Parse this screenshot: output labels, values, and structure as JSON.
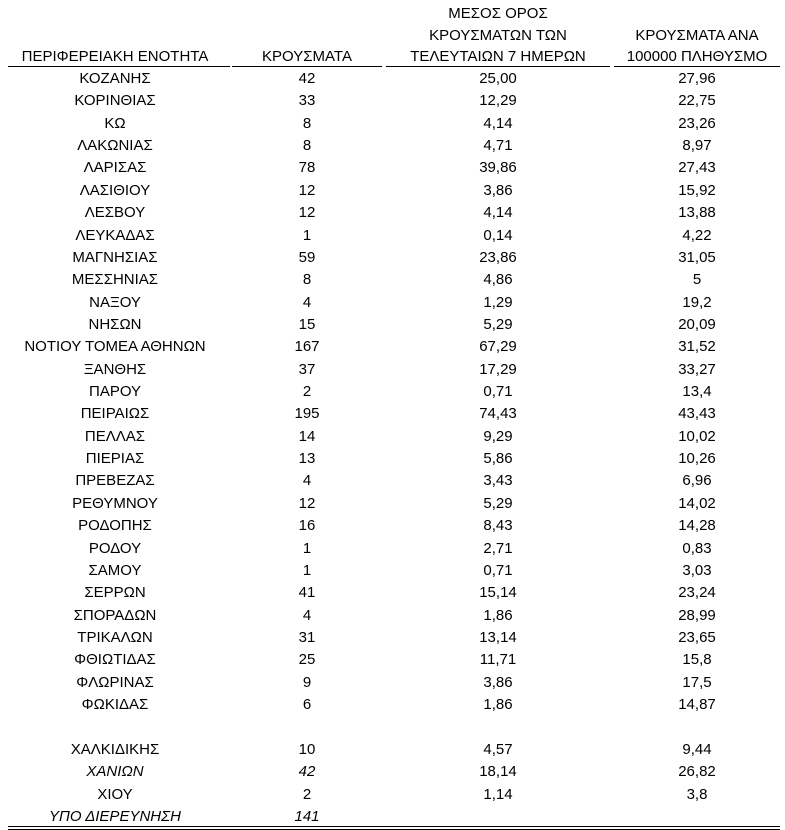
{
  "table": {
    "header": [
      [
        "ΠΕΡΙΦΕΡΕΙΑΚΗ ΕΝΟΤΗΤΑ"
      ],
      [
        "ΚΡΟΥΣΜΑΤΑ"
      ],
      [
        "ΜΕΣΟΣ ΟΡΟΣ",
        "ΚΡΟΥΣΜΑΤΩΝ ΤΩΝ",
        "ΤΕΛΕΥΤΑΙΩΝ 7 ΗΜΕΡΩΝ"
      ],
      [
        "ΚΡΟΥΣΜΑΤΑ ΑΝΑ",
        "100000 ΠΛΗΘΥΣΜΟ"
      ]
    ],
    "rows": [
      [
        "ΚΟΖΑΝΗΣ",
        "42",
        "25,00",
        "27,96"
      ],
      [
        "ΚΟΡΙΝΘΙΑΣ",
        "33",
        "12,29",
        "22,75"
      ],
      [
        "ΚΩ",
        "8",
        "4,14",
        "23,26"
      ],
      [
        "ΛΑΚΩΝΙΑΣ",
        "8",
        "4,71",
        "8,97"
      ],
      [
        "ΛΑΡΙΣΑΣ",
        "78",
        "39,86",
        "27,43"
      ],
      [
        "ΛΑΣΙΘΙΟΥ",
        "12",
        "3,86",
        "15,92"
      ],
      [
        "ΛΕΣΒΟΥ",
        "12",
        "4,14",
        "13,88"
      ],
      [
        "ΛΕΥΚΑΔΑΣ",
        "1",
        "0,14",
        "4,22"
      ],
      [
        "ΜΑΓΝΗΣΙΑΣ",
        "59",
        "23,86",
        "31,05"
      ],
      [
        "ΜΕΣΣΗΝΙΑΣ",
        "8",
        "4,86",
        "5"
      ],
      [
        "ΝΑΞΟΥ",
        "4",
        "1,29",
        "19,2"
      ],
      [
        "ΝΗΣΩΝ",
        "15",
        "5,29",
        "20,09"
      ],
      [
        "ΝΟΤΙΟΥ ΤΟΜΕΑ ΑΘΗΝΩΝ",
        "167",
        "67,29",
        "31,52"
      ],
      [
        "ΞΑΝΘΗΣ",
        "37",
        "17,29",
        "33,27"
      ],
      [
        "ΠΑΡΟΥ",
        "2",
        "0,71",
        "13,4"
      ],
      [
        "ΠΕΙΡΑΙΩΣ",
        "195",
        "74,43",
        "43,43"
      ],
      [
        "ΠΕΛΛΑΣ",
        "14",
        "9,29",
        "10,02"
      ],
      [
        "ΠΙΕΡΙΑΣ",
        "13",
        "5,86",
        "10,26"
      ],
      [
        "ΠΡΕΒΕΖΑΣ",
        "4",
        "3,43",
        "6,96"
      ],
      [
        "ΡΕΘΥΜΝΟΥ",
        "12",
        "5,29",
        "14,02"
      ],
      [
        "ΡΟΔΟΠΗΣ",
        "16",
        "8,43",
        "14,28"
      ],
      [
        "ΡΟΔΟΥ",
        "1",
        "2,71",
        "0,83"
      ],
      [
        "ΣΑΜΟΥ",
        "1",
        "0,71",
        "3,03"
      ],
      [
        "ΣΕΡΡΩΝ",
        "41",
        "15,14",
        "23,24"
      ],
      [
        "ΣΠΟΡΑΔΩΝ",
        "4",
        "1,86",
        "28,99"
      ],
      [
        "ΤΡΙΚΑΛΩΝ",
        "31",
        "13,14",
        "23,65"
      ],
      [
        "ΦΘΙΩΤΙΔΑΣ",
        "25",
        "11,71",
        "15,8"
      ],
      [
        "ΦΛΩΡΙΝΑΣ",
        "9",
        "3,86",
        "17,5"
      ],
      [
        "ΦΩΚΙΔΑΣ",
        "6",
        "1,86",
        "14,87"
      ],
      [
        "ΧΑΛΚΙΔΙΚΗΣ",
        "10",
        "4,57",
        "9,44"
      ],
      [
        "ΧΑΝΙΩΝ",
        "42",
        "18,14",
        "26,82"
      ],
      [
        "ΧΙΟΥ",
        "2",
        "1,14",
        "3,8"
      ],
      [
        "ΥΠΟ ΔΙΕΡΕΥΝΗΣΗ",
        "141"
      ]
    ]
  }
}
